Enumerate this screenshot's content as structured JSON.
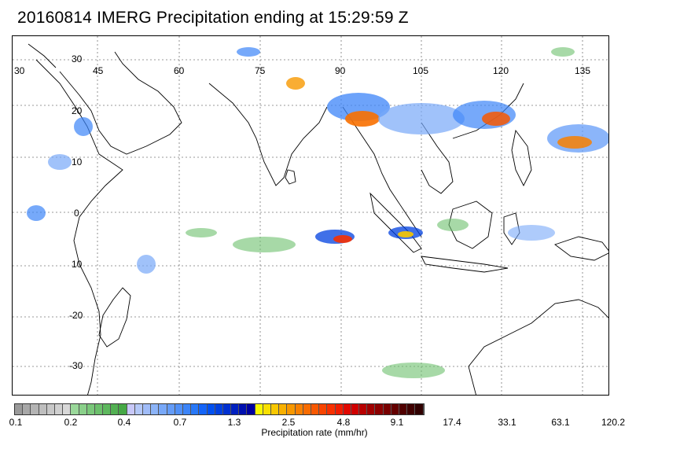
{
  "title": "20160814 IMERG Precipitation ending at 15:29:59 Z",
  "map": {
    "lat_labels": [
      "30",
      "20",
      "10",
      "0",
      "10",
      "-20",
      "-30"
    ],
    "lon_labels": [
      "30",
      "45",
      "60",
      "75",
      "90",
      "105",
      "120",
      "135"
    ]
  },
  "colorbar": {
    "ticks": [
      "0.1",
      "0.2",
      "0.4",
      "0.7",
      "1.3",
      "2.5",
      "4.8",
      "9.1",
      "17.4",
      "33.1",
      "63.1",
      "120.2"
    ],
    "label": "Precipitation rate (mm/hr)",
    "colors": [
      "#9a9a9a",
      "#a8a8a8",
      "#b4b4b4",
      "#bebebe",
      "#c8c8c8",
      "#d0d0d0",
      "#d8d8d8",
      "#9ad89a",
      "#8ad08a",
      "#7ac87a",
      "#6cc06c",
      "#5eb85e",
      "#52b052",
      "#46a846",
      "#c8c8f8",
      "#b4c8f8",
      "#a0bcf8",
      "#8cb4f8",
      "#78a8f8",
      "#649cf8",
      "#5090f8",
      "#3c84f8",
      "#2878f8",
      "#1464f8",
      "#0050f0",
      "#0040e0",
      "#0030d0",
      "#0020c0",
      "#0010b0",
      "#0000a0",
      "#f8f800",
      "#f8e000",
      "#f8c800",
      "#f8b000",
      "#f89800",
      "#f88000",
      "#f86c00",
      "#f85800",
      "#f84400",
      "#f83000",
      "#f01c00",
      "#e00800",
      "#d00000",
      "#b80000",
      "#a00000",
      "#8c0000",
      "#780000",
      "#640000",
      "#500000",
      "#400000",
      "#300000"
    ]
  }
}
